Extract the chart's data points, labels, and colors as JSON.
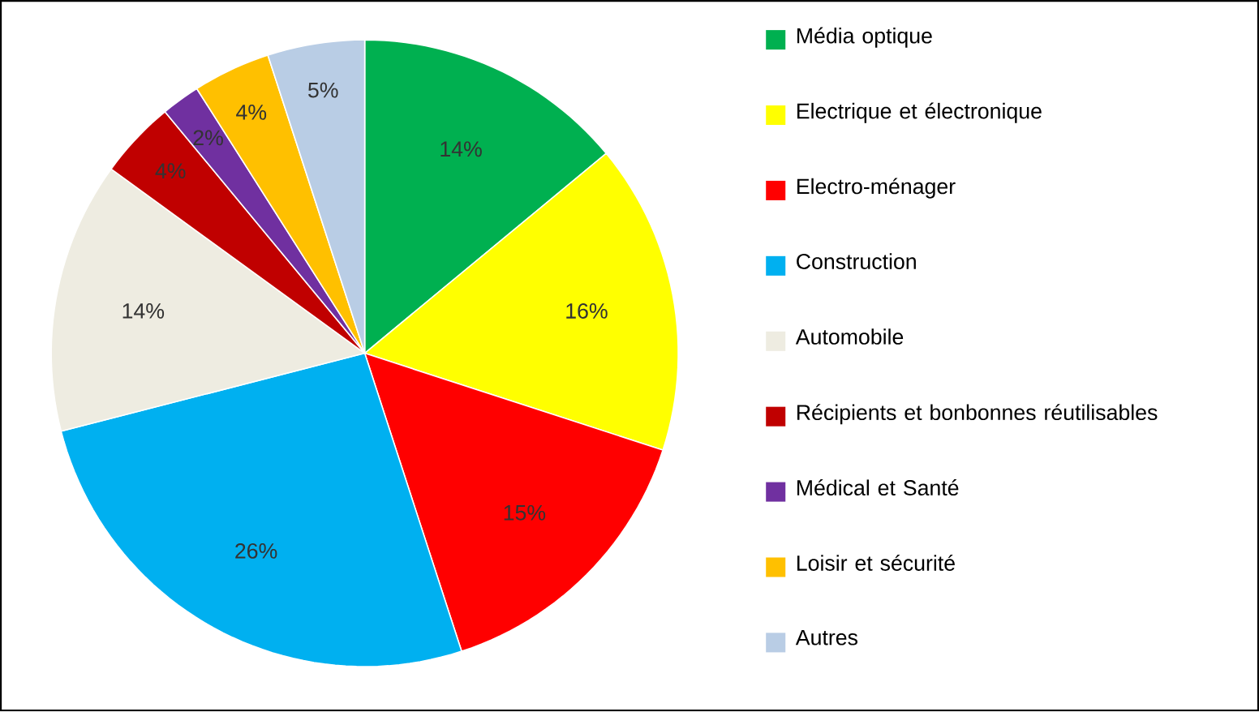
{
  "chart_data": {
    "type": "pie",
    "categories": [
      "Média optique",
      "Electrique et électronique",
      "Electro-ménager",
      "Construction",
      "Automobile",
      "Récipients et bonbonnes réutilisables",
      "Médical et Santé",
      "Loisir et sécurité",
      "Autres"
    ],
    "values": [
      14,
      16,
      15,
      26,
      14,
      4,
      2,
      4,
      5
    ],
    "value_labels": [
      "14%",
      "16%",
      "15%",
      "26%",
      "14%",
      "4%",
      "2%",
      "4%",
      "5%"
    ],
    "colors": [
      "#00b050",
      "#ffff00",
      "#ff0000",
      "#00b0f0",
      "#eeece1",
      "#c00000",
      "#7030a0",
      "#ffc000",
      "#b9cde5"
    ],
    "legend": "right"
  }
}
